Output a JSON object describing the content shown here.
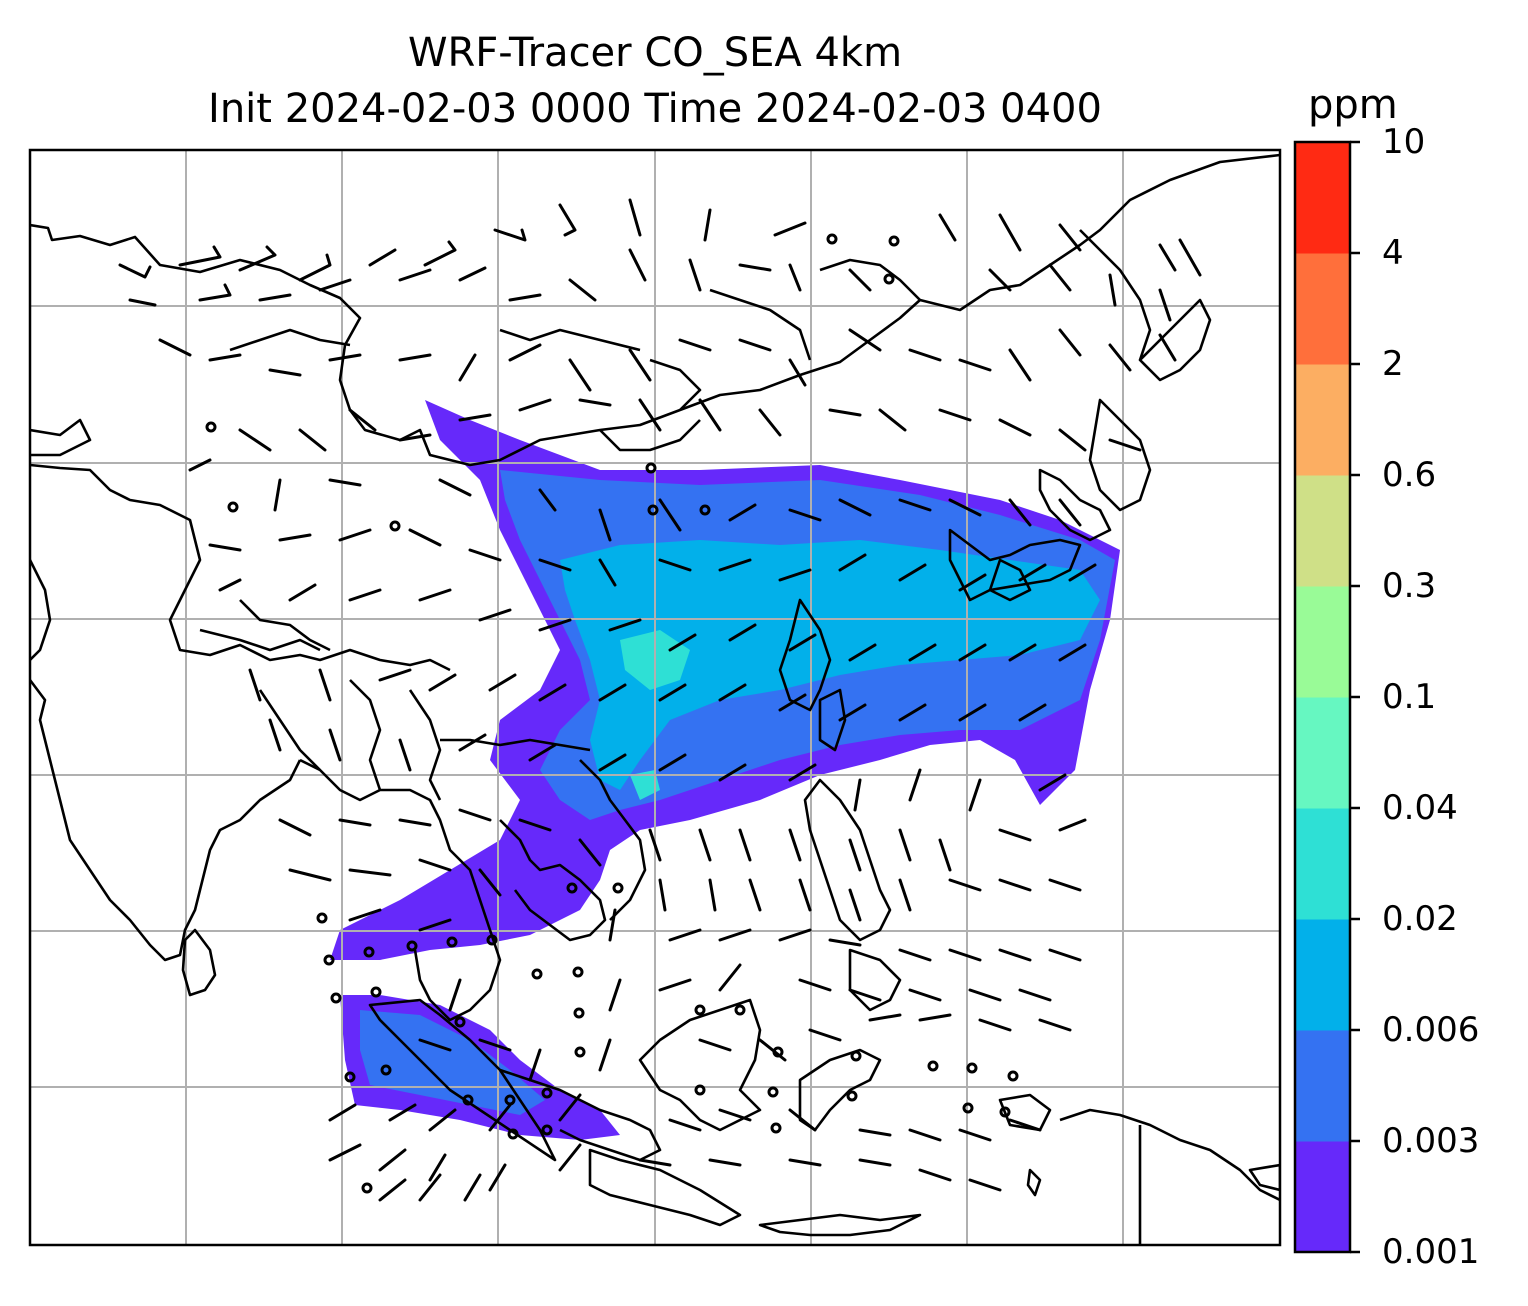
{
  "title": {
    "line1": "WRF-Tracer CO_SEA 4km",
    "line2": "Init 2024-02-03 0000 Time 2024-02-03 0400"
  },
  "colorbar": {
    "unit": "ppm",
    "levels": [
      "0.001",
      "0.003",
      "0.006",
      "0.02",
      "0.04",
      "0.1",
      "0.3",
      "0.6",
      "2",
      "4",
      "10"
    ],
    "colors": [
      "#6629fa",
      "#3472f2",
      "#02b0ea",
      "#2ee0d5",
      "#66f7c1",
      "#99fb97",
      "#cfe087",
      "#fcae62",
      "#ff6f3b",
      "#ff2a13"
    ]
  },
  "map": {
    "variable": "CO tracer concentration",
    "overlays": [
      "coastlines",
      "country borders",
      "lat/lon gridlines",
      "wind barbs"
    ],
    "gridlines": true
  }
}
